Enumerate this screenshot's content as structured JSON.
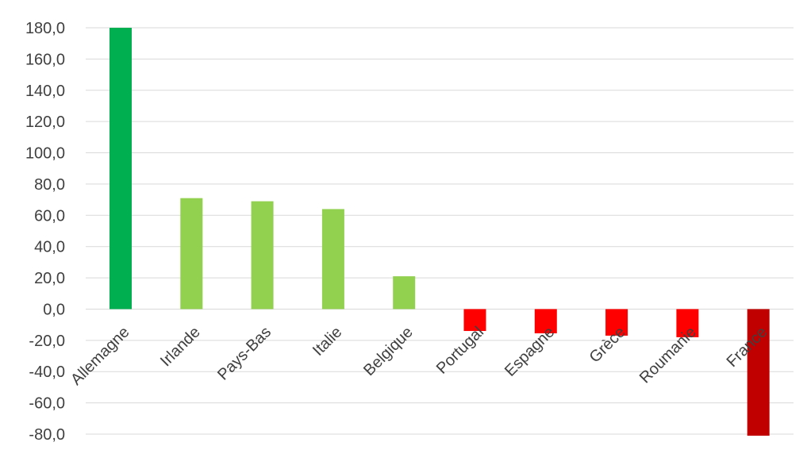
{
  "chart_data": {
    "type": "bar",
    "title": "",
    "xlabel": "",
    "ylabel": "",
    "categories": [
      "Allemagne",
      "Irlande",
      "Pays-Bas",
      "Italie",
      "Belgique",
      "Portugal",
      "Espagne",
      "Grèce",
      "Roumanie",
      "France"
    ],
    "values": [
      180.0,
      71.0,
      69.0,
      64.0,
      21.0,
      -14.0,
      -15.5,
      -17.0,
      -18.0,
      -81.0
    ],
    "bar_colors": [
      "#00b050",
      "#92d050",
      "#92d050",
      "#92d050",
      "#92d050",
      "#ff0000",
      "#ff0000",
      "#ff0000",
      "#ff0000",
      "#c00000"
    ],
    "ylim": [
      -80,
      180
    ],
    "yticks": [
      "180,0",
      "160,0",
      "140,0",
      "120,0",
      "100,0",
      "80,0",
      "60,0",
      "40,0",
      "20,0",
      "0,0",
      "-20,0",
      "-40,0",
      "-60,0",
      "-80,0"
    ],
    "ytick_values": [
      180,
      160,
      140,
      120,
      100,
      80,
      60,
      40,
      20,
      0,
      -20,
      -40,
      -60,
      -80
    ],
    "grid": true,
    "legend": "none"
  }
}
